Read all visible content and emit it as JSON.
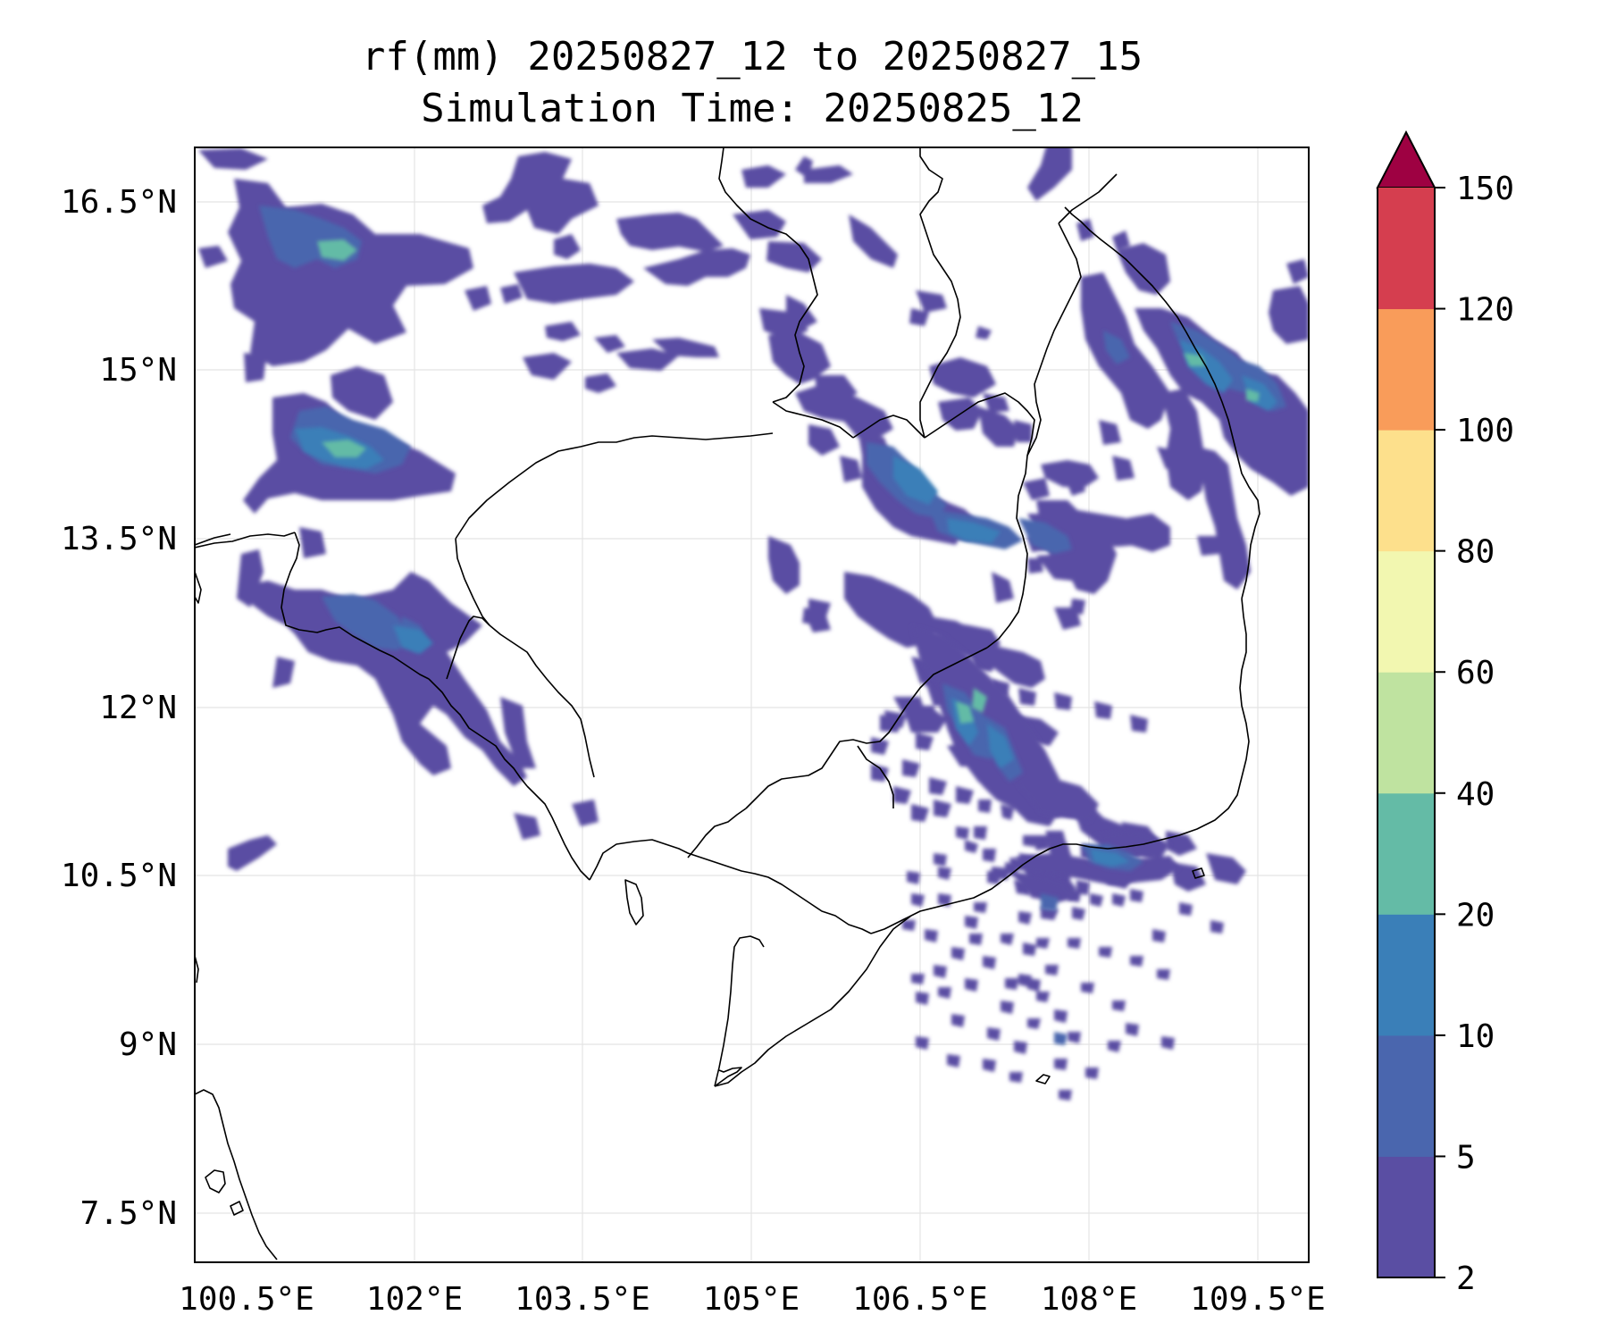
{
  "map": {
    "title_line1": "rf(mm) 20250827_12 to 20250827_15",
    "title_line2": "Simulation Time: 20250825_12",
    "lon_ticks": [
      "100.5°E",
      "102°E",
      "103.5°E",
      "105°E",
      "106.5°E",
      "108°E",
      "109.5°E"
    ],
    "lat_ticks": [
      "16.5°N",
      "15°N",
      "13.5°N",
      "12°N",
      "10.5°N",
      "9°N",
      "7.5°N"
    ],
    "grid": true,
    "region": "Cambodia, southern Laos, southern Vietnam, eastern Thailand",
    "variable": "rainfall accumulation, 3 hours"
  },
  "colorbar": {
    "labels": [
      "2",
      "5",
      "10",
      "20",
      "40",
      "60",
      "80",
      "100",
      "120",
      "150"
    ],
    "colors": [
      "#5a4ea3",
      "#4a66ae",
      "#3a7fb8",
      "#64bba6",
      "#bfe3a0",
      "#f2f7b0",
      "#fde08c",
      "#f99c5a",
      "#d53e4f"
    ],
    "extend_color": "#9e0142",
    "extend": "max"
  },
  "chart_data": {
    "type": "heatmap",
    "title": "rf(mm) 20250827_12 to 20250827_15",
    "subtitle": "Simulation Time: 20250825_12",
    "x_ticks": [
      "100.5°E",
      "102°E",
      "103.5°E",
      "105°E",
      "106.5°E",
      "108°E",
      "109.5°E"
    ],
    "y_ticks": [
      "16.5°N",
      "15°N",
      "13.5°N",
      "12°N",
      "10.5°N",
      "9°N",
      "7.5°N"
    ],
    "xlim": [
      99.55,
      109.45
    ],
    "ylim": [
      7.1,
      17.0
    ],
    "levels": [
      2,
      5,
      10,
      20,
      40,
      60,
      80,
      100,
      120,
      150
    ],
    "grid": true,
    "colorbar_position": "right"
  }
}
